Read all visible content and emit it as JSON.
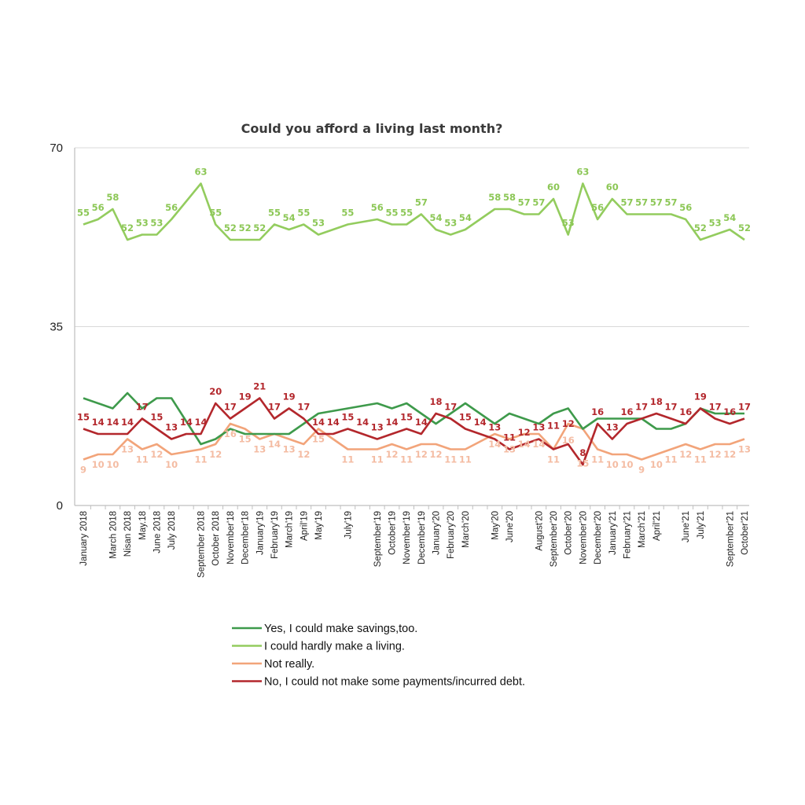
{
  "chart_data": {
    "type": "line",
    "title": "Could you afford a living last month?",
    "xlabel": "",
    "ylabel": "",
    "ylim": [
      0,
      70
    ],
    "y_ticks": [
      "0",
      "35",
      "70"
    ],
    "grid": true,
    "legend_position": "bottom",
    "x": [
      "2018-01",
      "2018-02",
      "2018-03",
      "2018-04",
      "2018-05",
      "2018-06",
      "2018-07",
      "2018-08",
      "2018-09",
      "2018-10",
      "2018-11",
      "2018-12",
      "2019-01",
      "2019-02",
      "2019-03",
      "2019-04",
      "2019-05",
      "2019-06",
      "2019-07",
      "2019-08",
      "2019-09",
      "2019-10",
      "2019-11",
      "2019-12",
      "2020-01",
      "2020-02",
      "2020-03",
      "2020-04",
      "2020-05",
      "2020-06",
      "2020-07",
      "2020-08",
      "2020-09",
      "2020-10",
      "2020-11",
      "2020-12",
      "2021-01",
      "2021-02",
      "2021-03",
      "2021-04",
      "2021-05",
      "2021-06",
      "2021-07",
      "2021-08",
      "2021-09",
      "2021-10"
    ],
    "x_tick_labels": [
      {
        "x": "2018-01",
        "label": "January 2018"
      },
      {
        "x": "2018-03",
        "label": "March 2018"
      },
      {
        "x": "2018-04",
        "label": "Nisan 2018"
      },
      {
        "x": "2018-05",
        "label": "May.18"
      },
      {
        "x": "2018-06",
        "label": "June 2018"
      },
      {
        "x": "2018-07",
        "label": "July 2018"
      },
      {
        "x": "2018-09",
        "label": "September 2018"
      },
      {
        "x": "2018-10",
        "label": "October 2018"
      },
      {
        "x": "2018-11",
        "label": "November'18"
      },
      {
        "x": "2018-12",
        "label": "December'18"
      },
      {
        "x": "2019-01",
        "label": "January'19"
      },
      {
        "x": "2019-02",
        "label": "February'19"
      },
      {
        "x": "2019-03",
        "label": "March'19"
      },
      {
        "x": "2019-04",
        "label": "April'19"
      },
      {
        "x": "2019-05",
        "label": "May'19"
      },
      {
        "x": "2019-07",
        "label": "July'19"
      },
      {
        "x": "2019-09",
        "label": "September'19"
      },
      {
        "x": "2019-10",
        "label": "October'19"
      },
      {
        "x": "2019-11",
        "label": "November'19"
      },
      {
        "x": "2019-12",
        "label": "December'19"
      },
      {
        "x": "2020-01",
        "label": "January'20"
      },
      {
        "x": "2020-02",
        "label": "February'20"
      },
      {
        "x": "2020-03",
        "label": "March'20"
      },
      {
        "x": "2020-05",
        "label": "May'20"
      },
      {
        "x": "2020-06",
        "label": "June'20"
      },
      {
        "x": "2020-08",
        "label": "August'20"
      },
      {
        "x": "2020-09",
        "label": "September'20"
      },
      {
        "x": "2020-10",
        "label": "October'20"
      },
      {
        "x": "2020-11",
        "label": "November'20"
      },
      {
        "x": "2020-12",
        "label": "December'20"
      },
      {
        "x": "2021-01",
        "label": "January'21"
      },
      {
        "x": "2021-02",
        "label": "February'21"
      },
      {
        "x": "2021-03",
        "label": "March'21"
      },
      {
        "x": "2021-04",
        "label": "April'21"
      },
      {
        "x": "2021-06",
        "label": "June'21"
      },
      {
        "x": "2021-07",
        "label": "July'21"
      },
      {
        "x": "2021-09",
        "label": "September'21"
      },
      {
        "x": "2021-10",
        "label": "October'21"
      }
    ],
    "series": [
      {
        "name": "Yes, I could make savings,too.",
        "color": "#3e9a4b",
        "show_labels": false,
        "values": [
          21,
          null,
          19,
          22,
          19,
          21,
          21,
          null,
          12,
          13,
          15,
          14,
          14,
          14,
          14,
          16,
          18,
          null,
          19,
          null,
          20,
          19,
          20,
          18,
          16,
          18,
          20,
          null,
          16,
          18,
          17,
          16,
          18,
          19,
          15,
          17,
          17,
          17,
          17,
          15,
          15,
          16,
          19,
          18,
          18,
          18
        ]
      },
      {
        "name": "I could hardly make a living.",
        "color": "#93cc5e",
        "label_color": "#8cc756",
        "show_labels": true,
        "values": [
          55,
          56,
          58,
          52,
          53,
          53,
          56,
          null,
          63,
          55,
          52,
          52,
          52,
          55,
          54,
          55,
          53,
          null,
          55,
          null,
          56,
          55,
          55,
          57,
          54,
          53,
          54,
          null,
          58,
          58,
          57,
          57,
          60,
          53,
          63,
          56,
          60,
          57,
          57,
          57,
          57,
          56,
          52,
          53,
          54,
          52
        ]
      },
      {
        "name": "Not really.",
        "color": "#f2a47a",
        "label_color": "#f4bca3",
        "show_labels": true,
        "values": [
          9,
          10,
          10,
          13,
          11,
          12,
          10,
          null,
          11,
          12,
          16,
          15,
          13,
          14,
          13,
          12,
          15,
          null,
          11,
          null,
          11,
          12,
          11,
          12,
          12,
          11,
          11,
          null,
          14,
          13,
          14,
          14,
          11,
          16,
          15,
          11,
          10,
          10,
          9,
          10,
          11,
          12,
          11,
          12,
          12,
          13
        ]
      },
      {
        "name": "No, I could not make some payments/incurred debt.",
        "color": "#b3272c",
        "label_color": "#b3272c",
        "show_labels": true,
        "values": [
          15,
          14,
          14,
          14,
          17,
          15,
          13,
          14,
          14,
          20,
          17,
          19,
          21,
          17,
          19,
          17,
          14,
          14,
          15,
          14,
          13,
          14,
          15,
          14,
          18,
          17,
          15,
          14,
          13,
          11,
          12,
          13,
          11,
          12,
          8,
          16,
          13,
          16,
          17,
          18,
          17,
          16,
          19,
          17,
          16,
          17
        ]
      }
    ]
  }
}
